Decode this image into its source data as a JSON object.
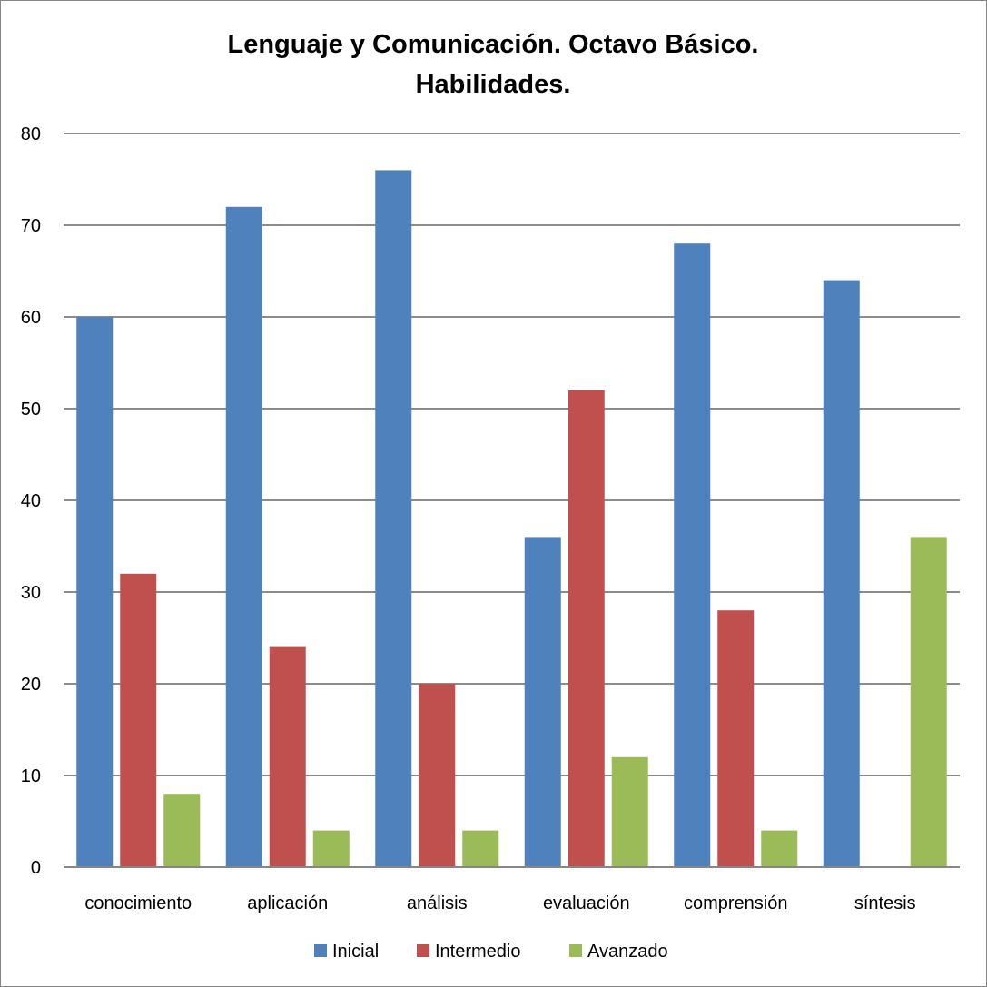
{
  "chart_data": {
    "type": "bar",
    "title_lines": [
      "Lenguaje y Comunicación. Octavo Básico.",
      "Habilidades."
    ],
    "categories": [
      "conocimiento",
      "aplicación",
      "análisis",
      "evaluación",
      "comprensión",
      "síntesis"
    ],
    "series": [
      {
        "name": "Inicial",
        "color": "#4F81BD",
        "values": [
          60,
          72,
          76,
          36,
          68,
          64
        ]
      },
      {
        "name": "Intermedio",
        "color": "#C0504D",
        "values": [
          32,
          24,
          20,
          52,
          28,
          0
        ]
      },
      {
        "name": "Avanzado",
        "color": "#9BBB59",
        "values": [
          8,
          4,
          4,
          12,
          4,
          36
        ]
      }
    ],
    "ylim": [
      0,
      80
    ],
    "yticks": [
      0,
      10,
      20,
      30,
      40,
      50,
      60,
      70,
      80
    ],
    "grid": true,
    "legend_position": "bottom",
    "xlabel": "",
    "ylabel": ""
  }
}
